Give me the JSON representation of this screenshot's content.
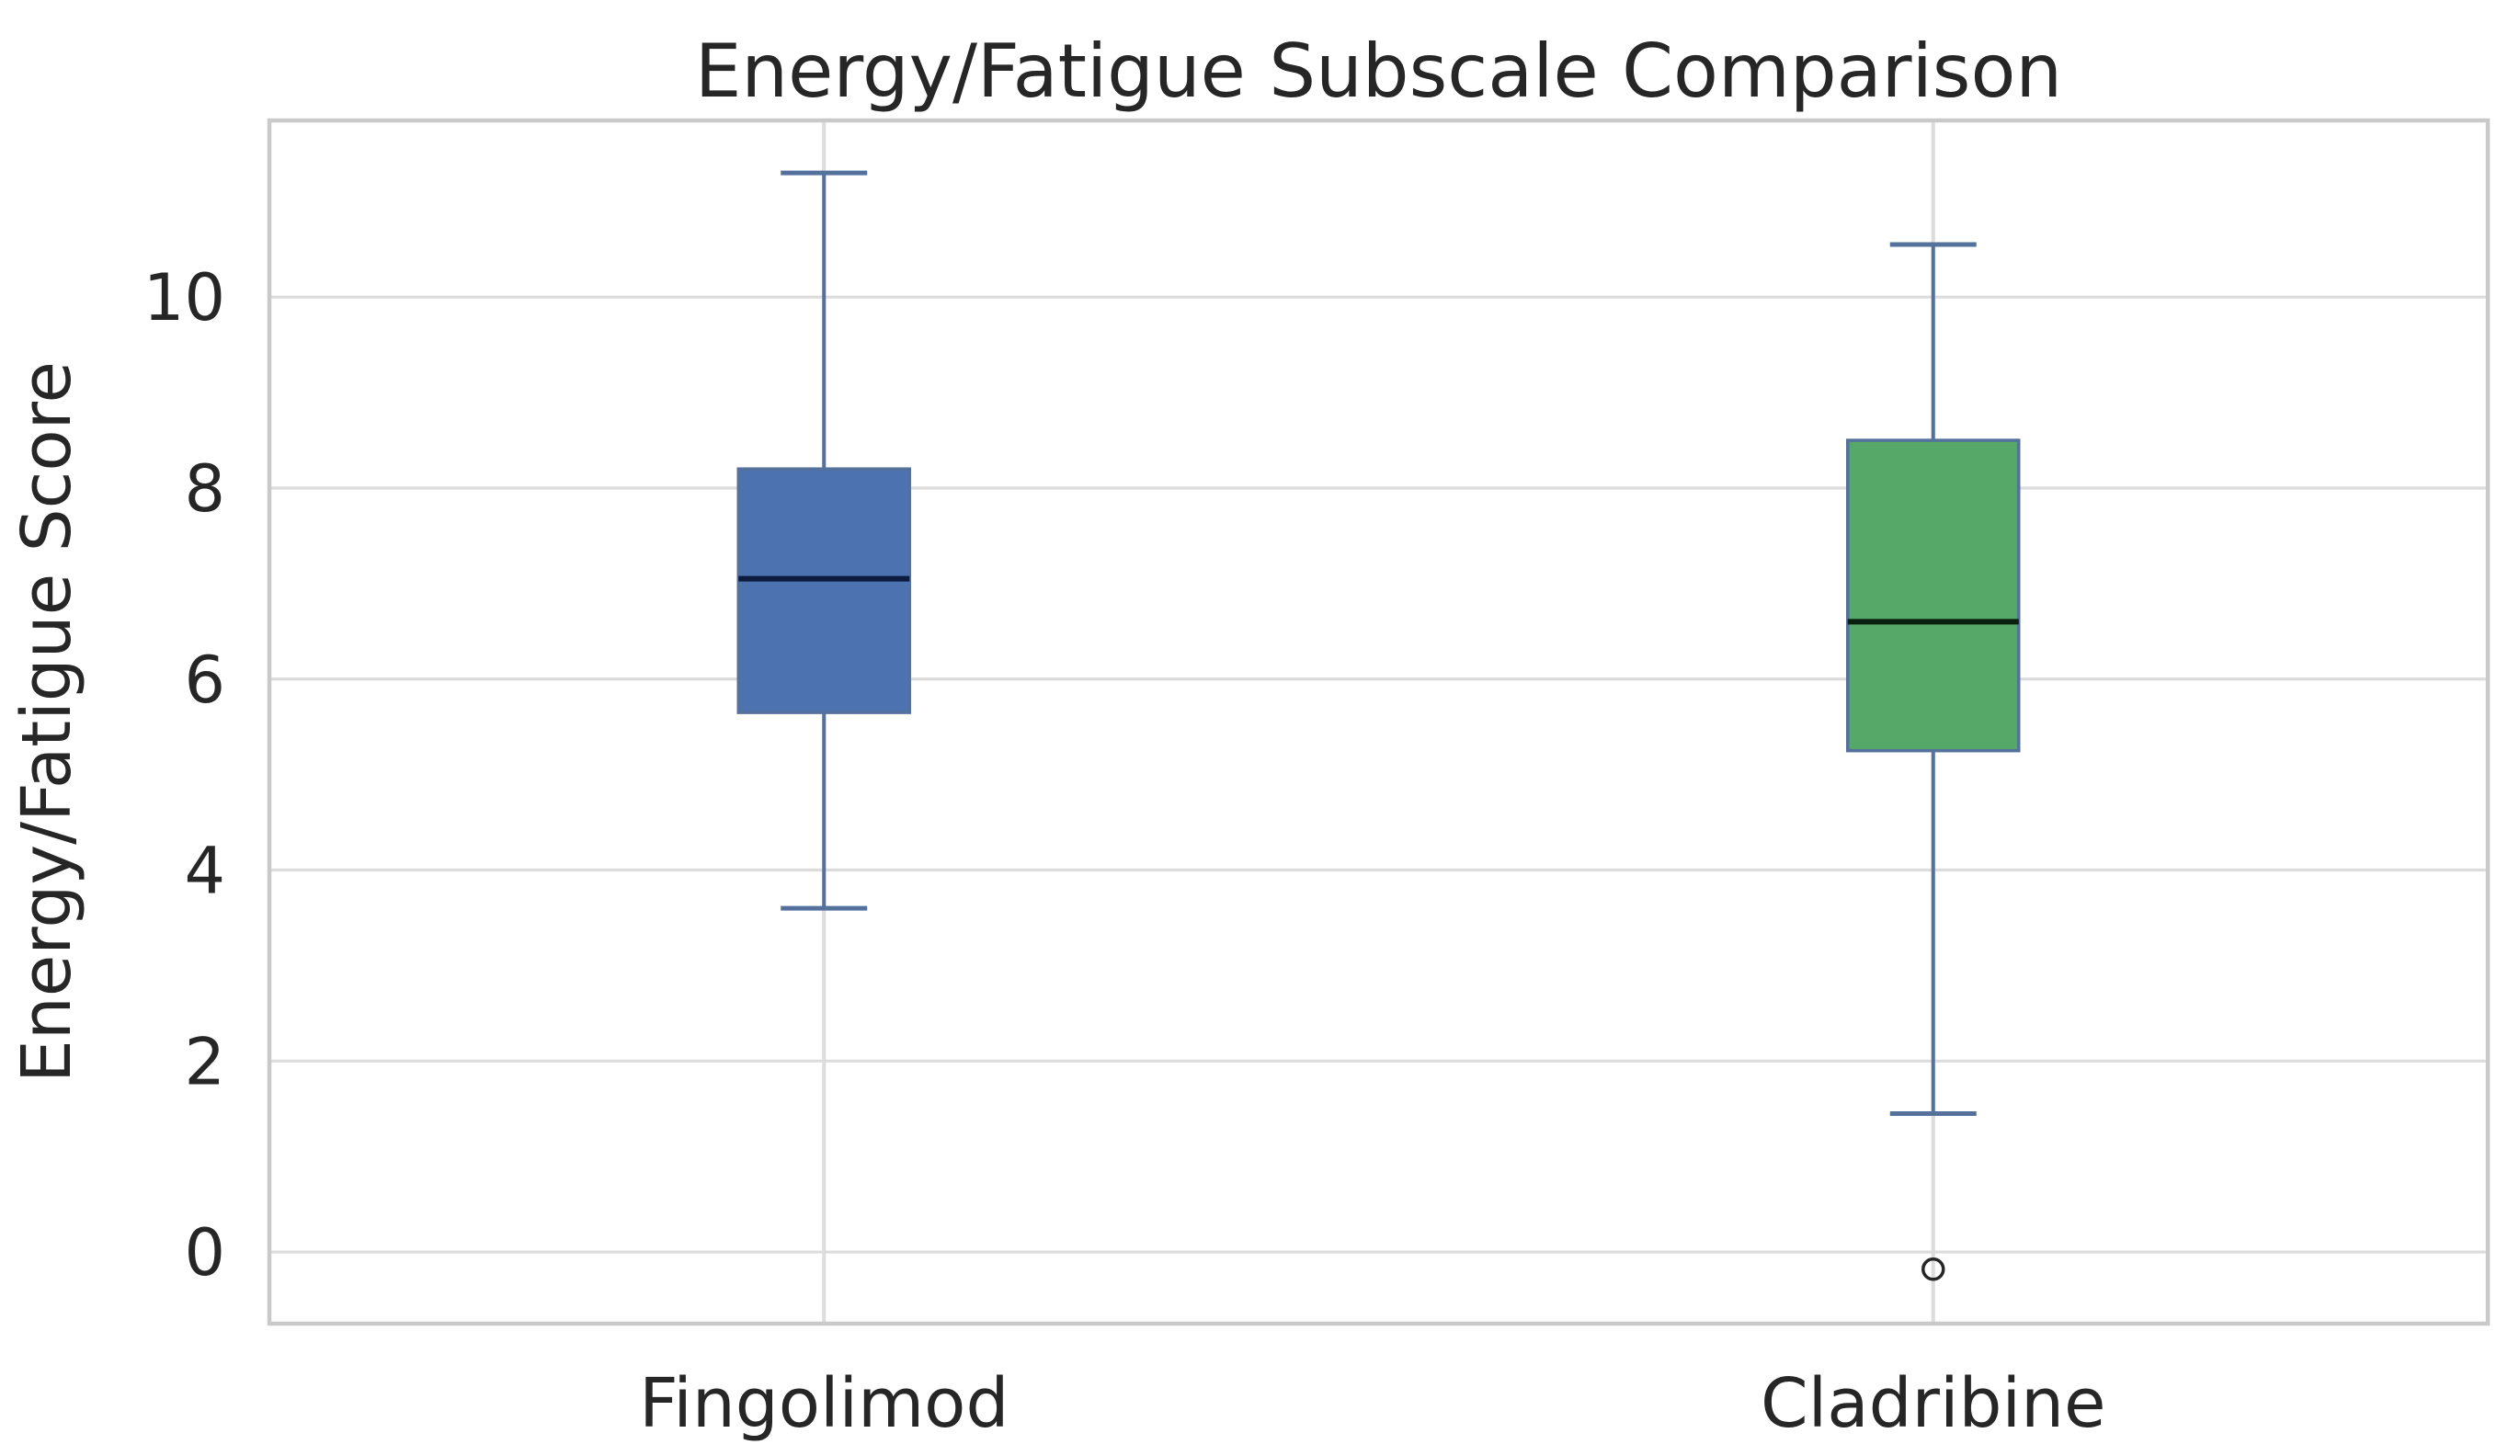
{
  "chart_data": {
    "type": "box",
    "title": "Energy/Fatigue Subscale Comparison",
    "ylabel": "Energy/Fatigue Score",
    "xlabel": "",
    "categories": [
      "Fingolimod",
      "Cladribine"
    ],
    "yticks": [
      0,
      2,
      4,
      6,
      8,
      10
    ],
    "ylim": [
      -0.75,
      11.85
    ],
    "grid": {
      "horizontal": true,
      "vertical_at_categories": true
    },
    "legend": "none",
    "series": [
      {
        "name": "Fingolimod",
        "box_color": "#4C72B0",
        "median_color": "#0d1b3e",
        "whisker_low": 3.6,
        "q1": 5.65,
        "median": 7.05,
        "q3": 8.2,
        "whisker_high": 11.3,
        "outliers": []
      },
      {
        "name": "Cladribine",
        "box_color": "#55A868",
        "median_color": "#0a1f10",
        "whisker_low": 1.45,
        "q1": 5.25,
        "median": 6.6,
        "q3": 8.5,
        "whisker_high": 10.55,
        "outliers": [
          -0.18
        ]
      }
    ],
    "colors": {
      "edge_and_whisker": "#54719c",
      "grid_line": "#dcdcdc",
      "spine": "#c9c9c9",
      "text": "#262626",
      "outlier_edge": "#262626",
      "background": "#ffffff"
    }
  }
}
